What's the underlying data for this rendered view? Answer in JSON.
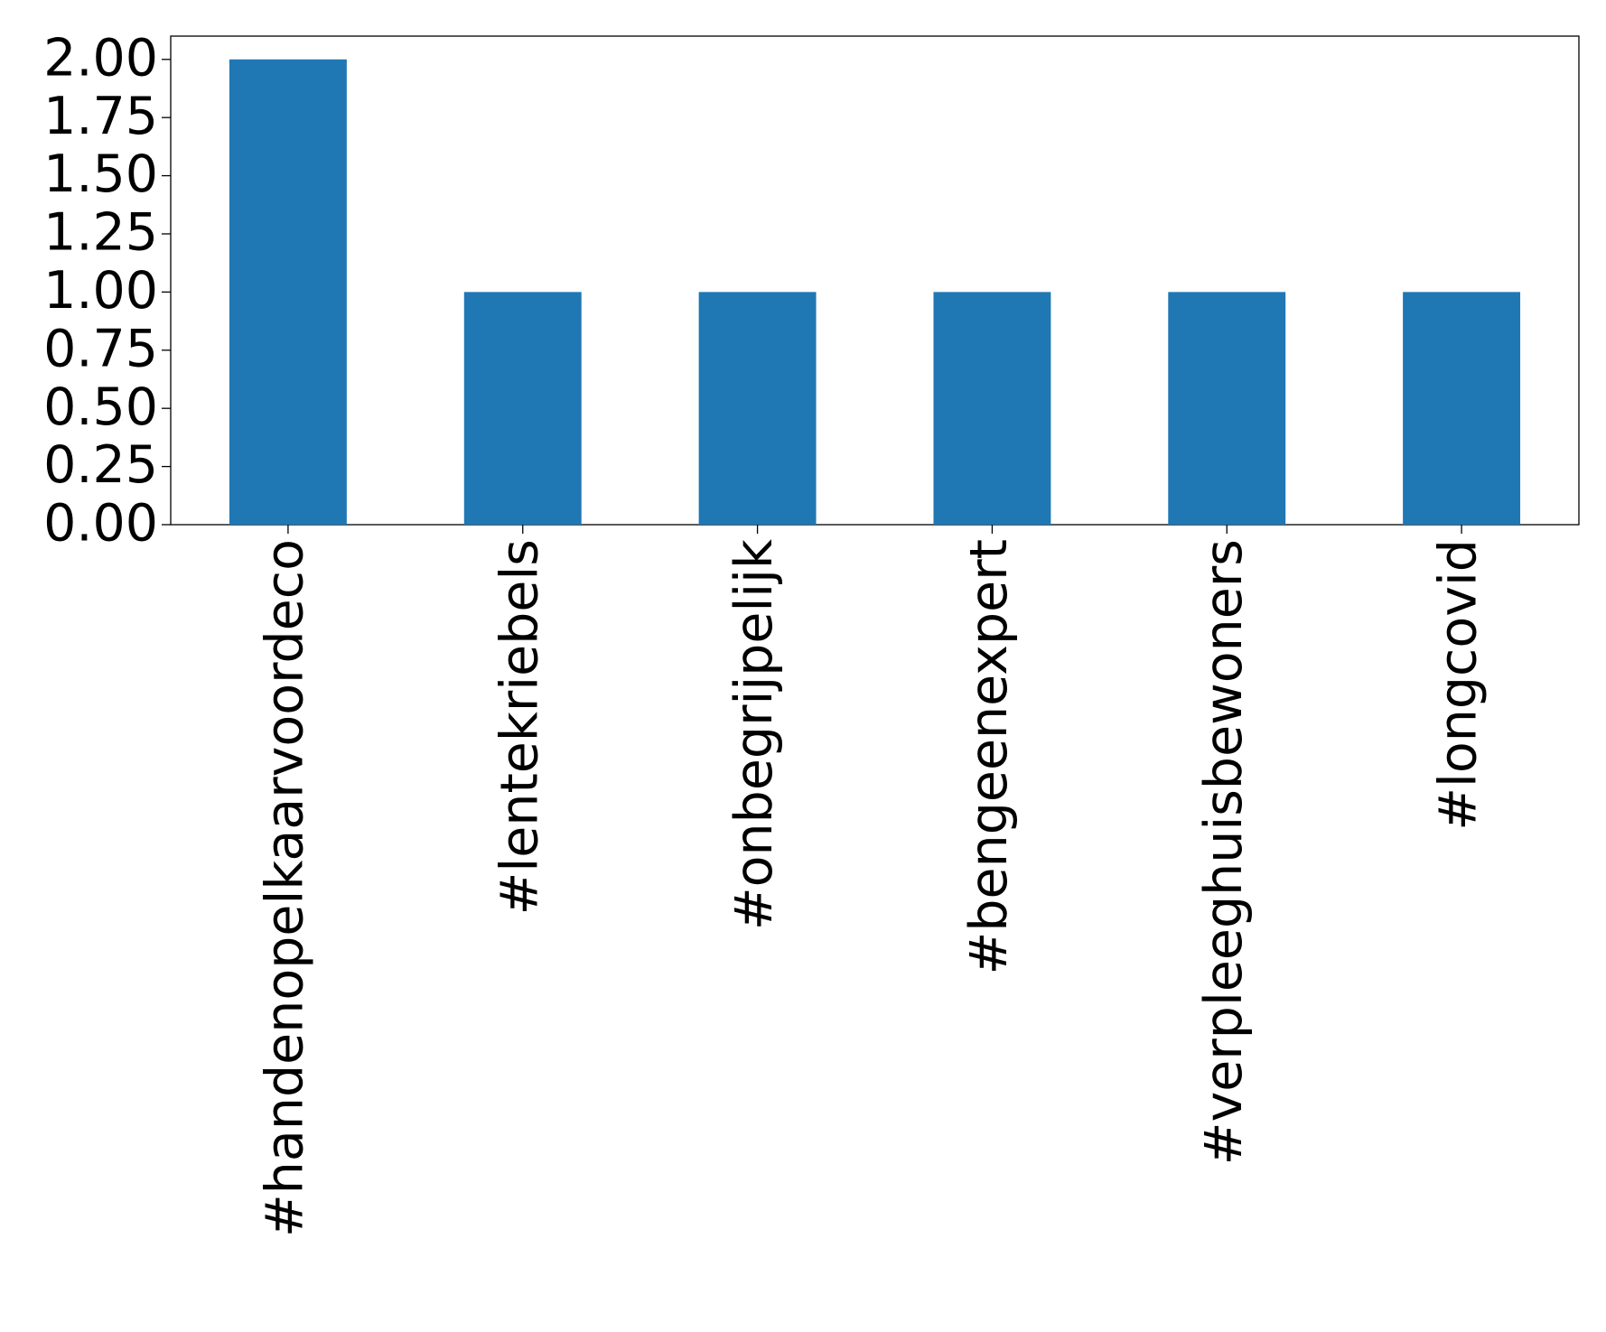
{
  "chart_data": {
    "type": "bar",
    "categories": [
      "#handenopelkaarvoordeco",
      "#lentekriebels",
      "#onbegrijpelijk",
      "#bengeenexpert",
      "#verpleeghuisbewoners",
      "#longcovid"
    ],
    "values": [
      2,
      1,
      1,
      1,
      1,
      1
    ],
    "color": "#1f77b4",
    "ylim": [
      0,
      2.1
    ],
    "yticks": [
      {
        "value": 0,
        "label": "0.00"
      },
      {
        "value": 0.25,
        "label": "0.25"
      },
      {
        "value": 0.5,
        "label": "0.50"
      },
      {
        "value": 0.75,
        "label": "0.75"
      },
      {
        "value": 1,
        "label": "1.00"
      },
      {
        "value": 1.25,
        "label": "1.25"
      },
      {
        "value": 1.5,
        "label": "1.50"
      },
      {
        "value": 1.75,
        "label": "1.75"
      },
      {
        "value": 2,
        "label": "2.00"
      }
    ],
    "grid": false
  }
}
